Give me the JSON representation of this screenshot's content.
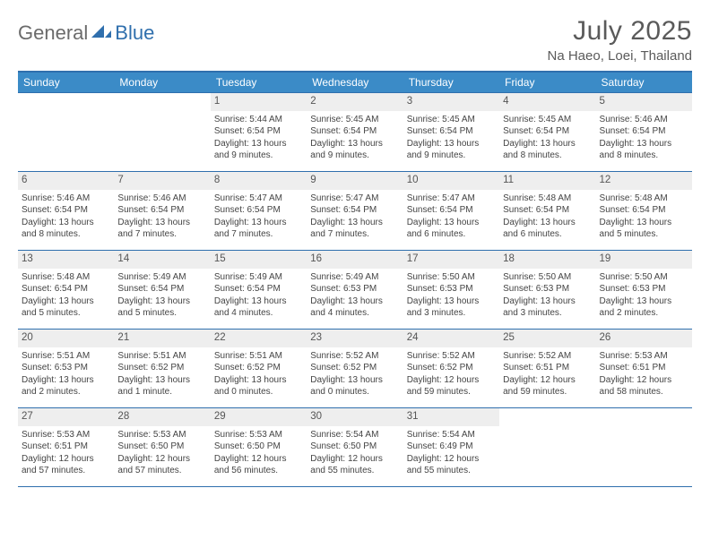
{
  "brand": {
    "part1": "General",
    "part2": "Blue"
  },
  "title": "July 2025",
  "location": "Na Haeo, Loei, Thailand",
  "colors": {
    "header_bg": "#3b8bc7",
    "header_border": "#2f6fad",
    "daynum_bg": "#eeeeee",
    "text": "#444444",
    "title_text": "#5a5a5a"
  },
  "weekdays": [
    "Sunday",
    "Monday",
    "Tuesday",
    "Wednesday",
    "Thursday",
    "Friday",
    "Saturday"
  ],
  "weeks": [
    [
      {
        "day": "",
        "sunrise": "",
        "sunset": "",
        "daylight": ""
      },
      {
        "day": "",
        "sunrise": "",
        "sunset": "",
        "daylight": ""
      },
      {
        "day": "1",
        "sunrise": "Sunrise: 5:44 AM",
        "sunset": "Sunset: 6:54 PM",
        "daylight": "Daylight: 13 hours and 9 minutes."
      },
      {
        "day": "2",
        "sunrise": "Sunrise: 5:45 AM",
        "sunset": "Sunset: 6:54 PM",
        "daylight": "Daylight: 13 hours and 9 minutes."
      },
      {
        "day": "3",
        "sunrise": "Sunrise: 5:45 AM",
        "sunset": "Sunset: 6:54 PM",
        "daylight": "Daylight: 13 hours and 9 minutes."
      },
      {
        "day": "4",
        "sunrise": "Sunrise: 5:45 AM",
        "sunset": "Sunset: 6:54 PM",
        "daylight": "Daylight: 13 hours and 8 minutes."
      },
      {
        "day": "5",
        "sunrise": "Sunrise: 5:46 AM",
        "sunset": "Sunset: 6:54 PM",
        "daylight": "Daylight: 13 hours and 8 minutes."
      }
    ],
    [
      {
        "day": "6",
        "sunrise": "Sunrise: 5:46 AM",
        "sunset": "Sunset: 6:54 PM",
        "daylight": "Daylight: 13 hours and 8 minutes."
      },
      {
        "day": "7",
        "sunrise": "Sunrise: 5:46 AM",
        "sunset": "Sunset: 6:54 PM",
        "daylight": "Daylight: 13 hours and 7 minutes."
      },
      {
        "day": "8",
        "sunrise": "Sunrise: 5:47 AM",
        "sunset": "Sunset: 6:54 PM",
        "daylight": "Daylight: 13 hours and 7 minutes."
      },
      {
        "day": "9",
        "sunrise": "Sunrise: 5:47 AM",
        "sunset": "Sunset: 6:54 PM",
        "daylight": "Daylight: 13 hours and 7 minutes."
      },
      {
        "day": "10",
        "sunrise": "Sunrise: 5:47 AM",
        "sunset": "Sunset: 6:54 PM",
        "daylight": "Daylight: 13 hours and 6 minutes."
      },
      {
        "day": "11",
        "sunrise": "Sunrise: 5:48 AM",
        "sunset": "Sunset: 6:54 PM",
        "daylight": "Daylight: 13 hours and 6 minutes."
      },
      {
        "day": "12",
        "sunrise": "Sunrise: 5:48 AM",
        "sunset": "Sunset: 6:54 PM",
        "daylight": "Daylight: 13 hours and 5 minutes."
      }
    ],
    [
      {
        "day": "13",
        "sunrise": "Sunrise: 5:48 AM",
        "sunset": "Sunset: 6:54 PM",
        "daylight": "Daylight: 13 hours and 5 minutes."
      },
      {
        "day": "14",
        "sunrise": "Sunrise: 5:49 AM",
        "sunset": "Sunset: 6:54 PM",
        "daylight": "Daylight: 13 hours and 5 minutes."
      },
      {
        "day": "15",
        "sunrise": "Sunrise: 5:49 AM",
        "sunset": "Sunset: 6:54 PM",
        "daylight": "Daylight: 13 hours and 4 minutes."
      },
      {
        "day": "16",
        "sunrise": "Sunrise: 5:49 AM",
        "sunset": "Sunset: 6:53 PM",
        "daylight": "Daylight: 13 hours and 4 minutes."
      },
      {
        "day": "17",
        "sunrise": "Sunrise: 5:50 AM",
        "sunset": "Sunset: 6:53 PM",
        "daylight": "Daylight: 13 hours and 3 minutes."
      },
      {
        "day": "18",
        "sunrise": "Sunrise: 5:50 AM",
        "sunset": "Sunset: 6:53 PM",
        "daylight": "Daylight: 13 hours and 3 minutes."
      },
      {
        "day": "19",
        "sunrise": "Sunrise: 5:50 AM",
        "sunset": "Sunset: 6:53 PM",
        "daylight": "Daylight: 13 hours and 2 minutes."
      }
    ],
    [
      {
        "day": "20",
        "sunrise": "Sunrise: 5:51 AM",
        "sunset": "Sunset: 6:53 PM",
        "daylight": "Daylight: 13 hours and 2 minutes."
      },
      {
        "day": "21",
        "sunrise": "Sunrise: 5:51 AM",
        "sunset": "Sunset: 6:52 PM",
        "daylight": "Daylight: 13 hours and 1 minute."
      },
      {
        "day": "22",
        "sunrise": "Sunrise: 5:51 AM",
        "sunset": "Sunset: 6:52 PM",
        "daylight": "Daylight: 13 hours and 0 minutes."
      },
      {
        "day": "23",
        "sunrise": "Sunrise: 5:52 AM",
        "sunset": "Sunset: 6:52 PM",
        "daylight": "Daylight: 13 hours and 0 minutes."
      },
      {
        "day": "24",
        "sunrise": "Sunrise: 5:52 AM",
        "sunset": "Sunset: 6:52 PM",
        "daylight": "Daylight: 12 hours and 59 minutes."
      },
      {
        "day": "25",
        "sunrise": "Sunrise: 5:52 AM",
        "sunset": "Sunset: 6:51 PM",
        "daylight": "Daylight: 12 hours and 59 minutes."
      },
      {
        "day": "26",
        "sunrise": "Sunrise: 5:53 AM",
        "sunset": "Sunset: 6:51 PM",
        "daylight": "Daylight: 12 hours and 58 minutes."
      }
    ],
    [
      {
        "day": "27",
        "sunrise": "Sunrise: 5:53 AM",
        "sunset": "Sunset: 6:51 PM",
        "daylight": "Daylight: 12 hours and 57 minutes."
      },
      {
        "day": "28",
        "sunrise": "Sunrise: 5:53 AM",
        "sunset": "Sunset: 6:50 PM",
        "daylight": "Daylight: 12 hours and 57 minutes."
      },
      {
        "day": "29",
        "sunrise": "Sunrise: 5:53 AM",
        "sunset": "Sunset: 6:50 PM",
        "daylight": "Daylight: 12 hours and 56 minutes."
      },
      {
        "day": "30",
        "sunrise": "Sunrise: 5:54 AM",
        "sunset": "Sunset: 6:50 PM",
        "daylight": "Daylight: 12 hours and 55 minutes."
      },
      {
        "day": "31",
        "sunrise": "Sunrise: 5:54 AM",
        "sunset": "Sunset: 6:49 PM",
        "daylight": "Daylight: 12 hours and 55 minutes."
      },
      {
        "day": "",
        "sunrise": "",
        "sunset": "",
        "daylight": ""
      },
      {
        "day": "",
        "sunrise": "",
        "sunset": "",
        "daylight": ""
      }
    ]
  ]
}
